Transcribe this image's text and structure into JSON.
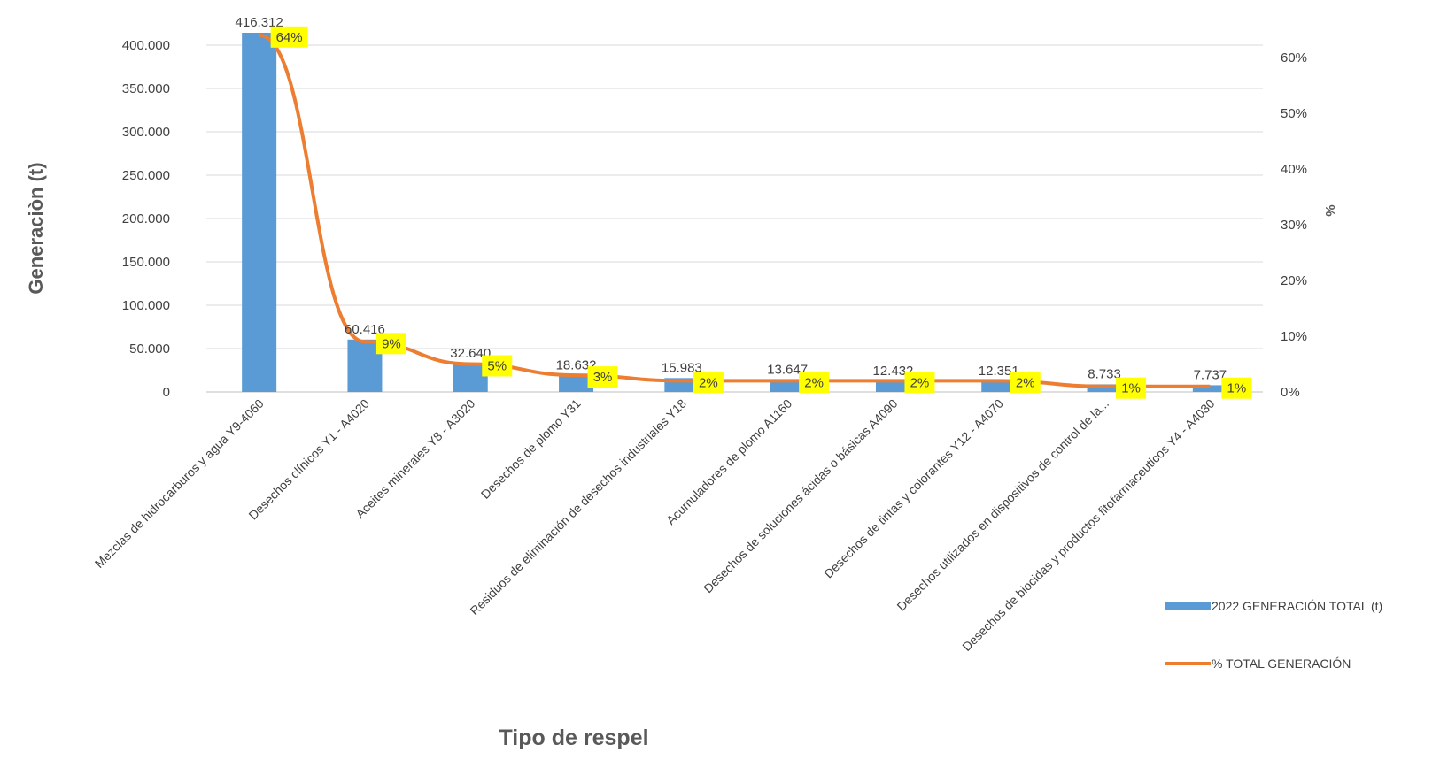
{
  "chart_data": {
    "type": "bar",
    "categories": [
      "Mezclas de hidrocarburos y agua Y9-4060",
      "Desechos clínicos Y1 - A4020",
      "Aceites minerales Y8 - A3020",
      "Desechos de plomo Y31",
      "Residuos de eliminación de desechos industriales Y18",
      "Acumuladores de plomo A1160",
      "Desechos de soluciones ácidas o básicas A4090",
      "Desechos de tintas y colorantes Y12 - A4070",
      "Desechos utilizados en dispositivos de control de la...",
      "Desechos de biocidas y productos fitofarmaceuticos Y4 - A4030"
    ],
    "series": [
      {
        "name": "2022 GENERACIÓN TOTAL (t)",
        "type": "bar",
        "axis": "left",
        "color": "#5B9BD5",
        "values": [
          416312,
          60416,
          32640,
          18632,
          15983,
          13647,
          12432,
          12351,
          8733,
          7737
        ],
        "labels": [
          "416.312",
          "60.416",
          "32.640",
          "18.632",
          "15.983",
          "13.647",
          "12.432",
          "12.351",
          "8.733",
          "7.737"
        ]
      },
      {
        "name": "% TOTAL GENERACIÓN",
        "type": "line",
        "axis": "right",
        "color": "#ED7D31",
        "values": [
          64,
          9,
          5,
          3,
          2,
          2,
          2,
          2,
          1,
          1
        ],
        "labels": [
          "64%",
          "9%",
          "5%",
          "3%",
          "2%",
          "2%",
          "2%",
          "2%",
          "1%",
          "1%"
        ],
        "label_background": "#FFFF00"
      }
    ],
    "ylabel": "Generaciòn (t)",
    "y2label": "%",
    "xlabel": "Tipo de respel",
    "ylim": [
      0,
      400000
    ],
    "y_ticks": [
      "0",
      "50.000",
      "100.000",
      "150.000",
      "200.000",
      "250.000",
      "300.000",
      "350.000",
      "400.000"
    ],
    "y_tick_values": [
      0,
      50000,
      100000,
      150000,
      200000,
      250000,
      300000,
      350000,
      400000
    ],
    "y2lim": [
      0,
      60
    ],
    "y2_ticks": [
      "0%",
      "10%",
      "20%",
      "30%",
      "40%",
      "50%",
      "60%"
    ],
    "y2_tick_values": [
      0,
      10,
      20,
      30,
      40,
      50,
      60
    ],
    "grid": true,
    "legend_position": "right"
  }
}
